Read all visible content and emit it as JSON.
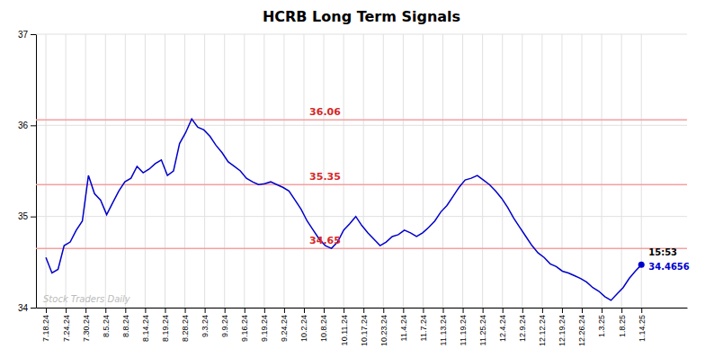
{
  "chart_data": {
    "type": "line",
    "title": "HCRB Long Term Signals",
    "watermark": "Stock Traders Daily",
    "color": "#0000cc",
    "grid": true,
    "xlim": [
      -0.5,
      32.3
    ],
    "xticks": [
      {
        "value": 0,
        "label": "7.18.24"
      },
      {
        "value": 1,
        "label": "7.24.24"
      },
      {
        "value": 2,
        "label": "7.30.24"
      },
      {
        "value": 3,
        "label": "8.5.24"
      },
      {
        "value": 4,
        "label": "8.8.24"
      },
      {
        "value": 5,
        "label": "8.14.24"
      },
      {
        "value": 6,
        "label": "8.19.24"
      },
      {
        "value": 7,
        "label": "8.28.24"
      },
      {
        "value": 8,
        "label": "9.3.24"
      },
      {
        "value": 9,
        "label": "9.9.24"
      },
      {
        "value": 10,
        "label": "9.16.24"
      },
      {
        "value": 11,
        "label": "9.19.24"
      },
      {
        "value": 12,
        "label": "9.24.24"
      },
      {
        "value": 13,
        "label": "10.2.24"
      },
      {
        "value": 14,
        "label": "10.8.24"
      },
      {
        "value": 15,
        "label": "10.11.24"
      },
      {
        "value": 16,
        "label": "10.17.24"
      },
      {
        "value": 17,
        "label": "10.23.24"
      },
      {
        "value": 18,
        "label": "11.4.24"
      },
      {
        "value": 19,
        "label": "11.7.24"
      },
      {
        "value": 20,
        "label": "11.13.24"
      },
      {
        "value": 21,
        "label": "11.19.24"
      },
      {
        "value": 22,
        "label": "11.25.24"
      },
      {
        "value": 23,
        "label": "12.4.24"
      },
      {
        "value": 24,
        "label": "12.9.24"
      },
      {
        "value": 25,
        "label": "12.12.24"
      },
      {
        "value": 26,
        "label": "12.19.24"
      },
      {
        "value": 27,
        "label": "12.26.24"
      },
      {
        "value": 28,
        "label": "1.3.25"
      },
      {
        "value": 29,
        "label": "1.8.25"
      },
      {
        "value": 30,
        "label": "1.14.25"
      }
    ],
    "ylim": [
      34.0,
      37.0
    ],
    "yticks": [
      34,
      35,
      36,
      37
    ],
    "x": [
      0,
      0.3061,
      0.6122,
      0.9184,
      1.2245,
      1.5306,
      1.8367,
      2.1429,
      2.449,
      2.7551,
      3.0612,
      3.3673,
      3.6735,
      3.9796,
      4.2857,
      4.5918,
      4.898,
      5.2041,
      5.5102,
      5.8163,
      6.1224,
      6.4286,
      6.7347,
      7.0408,
      7.3469,
      7.6531,
      7.9592,
      8.2653,
      8.5714,
      8.8776,
      9.1837,
      9.4898,
      9.7959,
      10.102,
      10.4082,
      10.7143,
      11.0204,
      11.3265,
      11.6327,
      11.9388,
      12.2449,
      12.551,
      12.8571,
      13.1633,
      13.4694,
      13.7755,
      14.0816,
      14.3878,
      14.6939,
      15,
      15.3061,
      15.6122,
      15.9184,
      16.2245,
      16.5306,
      16.8367,
      17.1429,
      17.449,
      17.7551,
      18.0612,
      18.3673,
      18.6735,
      18.9796,
      19.2857,
      19.5918,
      19.898,
      20.2041,
      20.5102,
      20.8163,
      21.1224,
      21.4286,
      21.7347,
      22.0408,
      22.3469,
      22.6531,
      22.9592,
      23.2653,
      23.5714,
      23.8776,
      24.1837,
      24.4898,
      24.7959,
      25.102,
      25.4082,
      25.7143,
      26.0204,
      26.3265,
      26.6327,
      26.9388,
      27.2449,
      27.551,
      27.8571,
      28.1633,
      28.4694,
      28.7755,
      29.0816,
      29.3878,
      29.6939,
      30
    ],
    "values": [
      34.55,
      34.38,
      34.42,
      34.68,
      34.72,
      34.85,
      34.95,
      35.45,
      35.25,
      35.18,
      35.02,
      35.15,
      35.28,
      35.38,
      35.42,
      35.55,
      35.48,
      35.52,
      35.58,
      35.62,
      35.45,
      35.5,
      35.8,
      35.92,
      36.07,
      35.98,
      35.95,
      35.88,
      35.78,
      35.7,
      35.6,
      35.55,
      35.5,
      35.42,
      35.38,
      35.35,
      35.36,
      35.38,
      35.35,
      35.32,
      35.28,
      35.18,
      35.08,
      34.95,
      34.85,
      34.75,
      34.68,
      34.65,
      34.72,
      34.85,
      34.92,
      35.0,
      34.9,
      34.82,
      34.75,
      34.68,
      34.72,
      34.78,
      34.8,
      34.85,
      34.82,
      34.78,
      34.82,
      34.88,
      34.95,
      35.05,
      35.12,
      35.22,
      35.32,
      35.4,
      35.42,
      35.45,
      35.4,
      35.35,
      35.28,
      35.2,
      35.1,
      34.98,
      34.88,
      34.78,
      34.68,
      34.6,
      34.55,
      34.48,
      34.45,
      34.4,
      34.38,
      34.35,
      34.32,
      34.28,
      34.22,
      34.18,
      34.12,
      34.08,
      34.15,
      34.22,
      34.32,
      34.4,
      34.47
    ],
    "reference_lines": {
      "values": [
        34.65,
        35.35,
        36.06
      ],
      "color": "#f5a0a0",
      "data_labels": true
    },
    "last_price": {
      "time": "15:53",
      "value": 34.4656,
      "color": "#0000cc"
    }
  }
}
